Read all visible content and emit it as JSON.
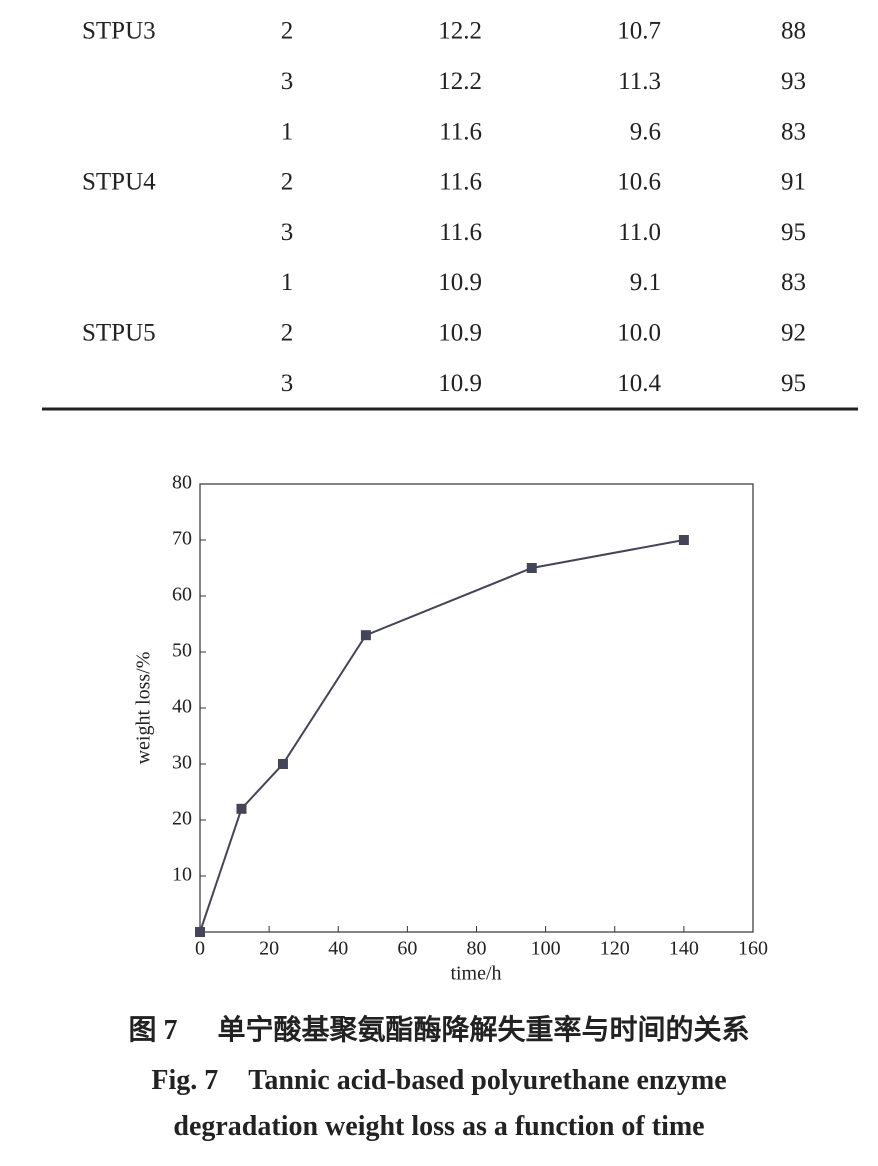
{
  "table": {
    "groups": [
      {
        "name": "STPU3",
        "rows": [
          [
            "2",
            "12.2",
            "10.7",
            "88"
          ],
          [
            "3",
            "12.2",
            "11.3",
            "93"
          ]
        ]
      },
      {
        "name": "STPU4",
        "rows": [
          [
            "1",
            "11.6",
            "9.6",
            "83"
          ],
          [
            "2",
            "11.6",
            "10.6",
            "91"
          ],
          [
            "3",
            "11.6",
            "11.0",
            "95"
          ]
        ]
      },
      {
        "name": "STPU5",
        "rows": [
          [
            "1",
            "10.9",
            "9.1",
            "83"
          ],
          [
            "2",
            "10.9",
            "10.0",
            "92"
          ],
          [
            "3",
            "10.9",
            "10.4",
            "95"
          ]
        ]
      }
    ]
  },
  "chart_data": {
    "type": "line",
    "x": [
      0,
      12,
      24,
      48,
      96,
      140
    ],
    "values": [
      0,
      22,
      30,
      53,
      65,
      70
    ],
    "color": "#45455a",
    "marker": "square",
    "xlim": [
      0,
      160
    ],
    "xticks": [
      0,
      20,
      40,
      60,
      80,
      100,
      120,
      140,
      160
    ],
    "ylim": [
      0,
      80
    ],
    "yticks": [
      10,
      20,
      30,
      40,
      50,
      60,
      70,
      80
    ],
    "xlabel": "time/h",
    "ylabel": "weight loss/%"
  },
  "caption": {
    "zh_label": "图 7",
    "zh_text": "单宁酸基聚氨酯酶降解失重率与时间的关系",
    "en_label": "Fig. 7",
    "en_text": "Tannic acid-based polyurethane enzyme degradation weight loss as a function of time"
  }
}
